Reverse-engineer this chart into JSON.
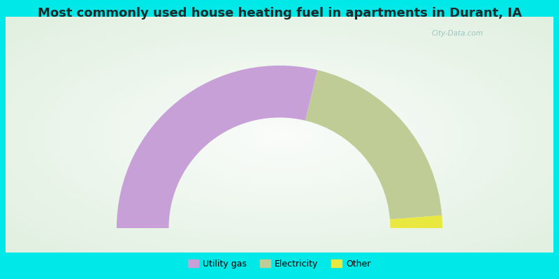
{
  "title": "Most commonly used house heating fuel in apartments in Durant, IA",
  "title_fontsize": 13,
  "segments": [
    {
      "label": "Utility gas",
      "value": 57.5,
      "color": "#c8a0d8"
    },
    {
      "label": "Electricity",
      "value": 40.0,
      "color": "#c0cc96"
    },
    {
      "label": "Other",
      "value": 2.5,
      "color": "#e8e840"
    }
  ],
  "bg_outer_color": "#00e8e8",
  "bg_panel_color": "#b8e8c8",
  "watermark": "City-Data.com",
  "legend_fontsize": 9,
  "outer_r": 1.0,
  "inner_r": 0.68
}
